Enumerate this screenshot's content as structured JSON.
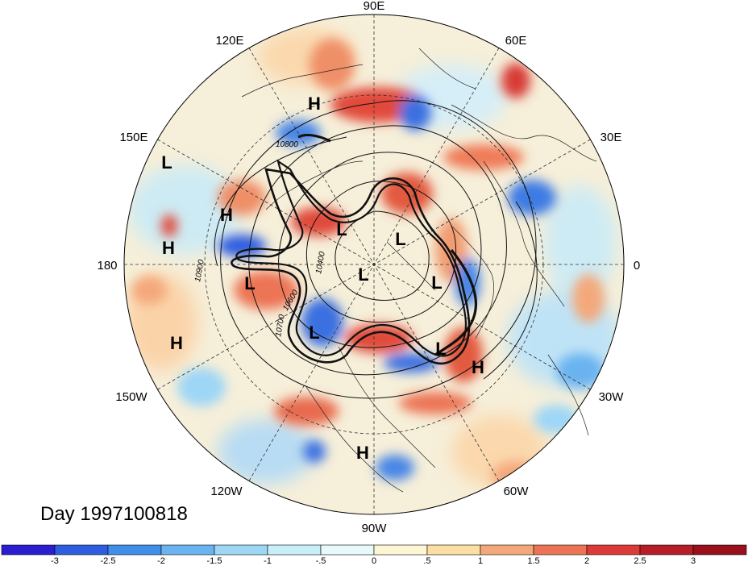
{
  "title": "Day 1997100818",
  "longitude_labels": [
    "90E",
    "60E",
    "30E",
    "0",
    "30W",
    "60W",
    "90W",
    "120W",
    "150W",
    "180",
    "150E",
    "120E"
  ],
  "pressure_centers": [
    {
      "type": "H"
    },
    {
      "type": "L"
    },
    {
      "type": "H"
    },
    {
      "type": "H"
    },
    {
      "type": "L"
    },
    {
      "type": "L"
    },
    {
      "type": "L"
    },
    {
      "type": "L"
    },
    {
      "type": "L"
    },
    {
      "type": "H"
    },
    {
      "type": "L"
    },
    {
      "type": "L"
    },
    {
      "type": "H"
    },
    {
      "type": "H"
    }
  ],
  "contour_labels": [
    "10900",
    "10700",
    "10800",
    "10400",
    "10600"
  ],
  "colorbar": {
    "ticks": [
      "-3",
      "-2.5",
      "-2",
      "-1.5",
      "-1",
      "-.5",
      "0",
      ".5",
      "1",
      "1.5",
      "2",
      "2.5",
      "3"
    ],
    "colors": [
      "#2b1ed0",
      "#2f5de0",
      "#3f8ee8",
      "#6bb3f0",
      "#9ed6f6",
      "#c8eef9",
      "#e8f9fb",
      "#fdf6d4",
      "#fbdfa2",
      "#f4a87a",
      "#ec7454",
      "#dc3a38",
      "#b71d26",
      "#9a0f1c"
    ]
  }
}
